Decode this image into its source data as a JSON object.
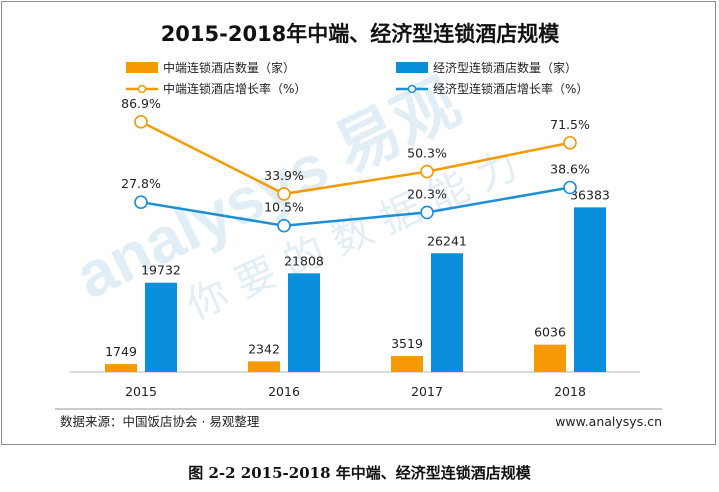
{
  "chart_data": {
    "type": "bar+line",
    "title": "2015-2018年中端、经济型连锁酒店规模",
    "categories": [
      "2015",
      "2016",
      "2017",
      "2018"
    ],
    "bar_series": [
      {
        "name": "中端连锁酒店数量（家）",
        "values": [
          1749,
          2342,
          3519,
          6036
        ],
        "color": "#f59a06"
      },
      {
        "name": "经济型连锁酒店数量（家）",
        "values": [
          19732,
          21808,
          26241,
          36383
        ],
        "color": "#0a8fdc"
      }
    ],
    "line_series": [
      {
        "name": "中端连锁酒店增长率（%）",
        "values": [
          86.9,
          33.9,
          50.3,
          71.5
        ],
        "labels": [
          "86.9%",
          "33.9%",
          "50.3%",
          "71.5%"
        ],
        "color": "#f59a06"
      },
      {
        "name": "经济型连锁酒店增长率（%）",
        "values": [
          27.8,
          10.5,
          20.3,
          38.6
        ],
        "labels": [
          "27.8%",
          "10.5%",
          "20.3%",
          "38.6%"
        ],
        "color": "#1c8fd6"
      }
    ],
    "bar_ylim": [
      0,
      40000
    ],
    "line_ylim": [
      -150,
      150
    ],
    "legend_position": "top",
    "grid": false
  },
  "footer": {
    "source": "数据来源：中国饭店协会 · 易观整理",
    "website": "www.analysys.cn"
  },
  "watermark": {
    "brand": "analysys 易观",
    "slogan": "你 要 的 数 据 能 力"
  },
  "caption": "图 2-2 2015-2018 年中端、经济型连锁酒店规模"
}
